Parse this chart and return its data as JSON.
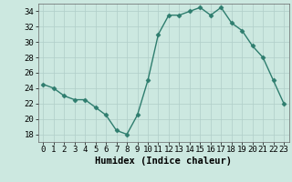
{
  "x": [
    0,
    1,
    2,
    3,
    4,
    5,
    6,
    7,
    8,
    9,
    10,
    11,
    12,
    13,
    14,
    15,
    16,
    17,
    18,
    19,
    20,
    21,
    22,
    23
  ],
  "y": [
    24.5,
    24.0,
    23.0,
    22.5,
    22.5,
    21.5,
    20.5,
    18.5,
    18.0,
    20.5,
    25.0,
    31.0,
    33.5,
    33.5,
    34.0,
    34.5,
    33.5,
    34.5,
    32.5,
    31.5,
    29.5,
    28.0,
    25.0,
    22.0
  ],
  "line_color": "#2e7d6e",
  "marker": "D",
  "markersize": 2.5,
  "linewidth": 1.0,
  "bg_color": "#cce8e0",
  "grid_color": "#b0cec8",
  "xlabel": "Humidex (Indice chaleur)",
  "xlabel_fontsize": 7.5,
  "tick_fontsize": 6.5,
  "ylim": [
    17,
    35
  ],
  "yticks": [
    18,
    20,
    22,
    24,
    26,
    28,
    30,
    32,
    34
  ],
  "xlim": [
    -0.5,
    23.5
  ],
  "xticks": [
    0,
    1,
    2,
    3,
    4,
    5,
    6,
    7,
    8,
    9,
    10,
    11,
    12,
    13,
    14,
    15,
    16,
    17,
    18,
    19,
    20,
    21,
    22,
    23
  ]
}
